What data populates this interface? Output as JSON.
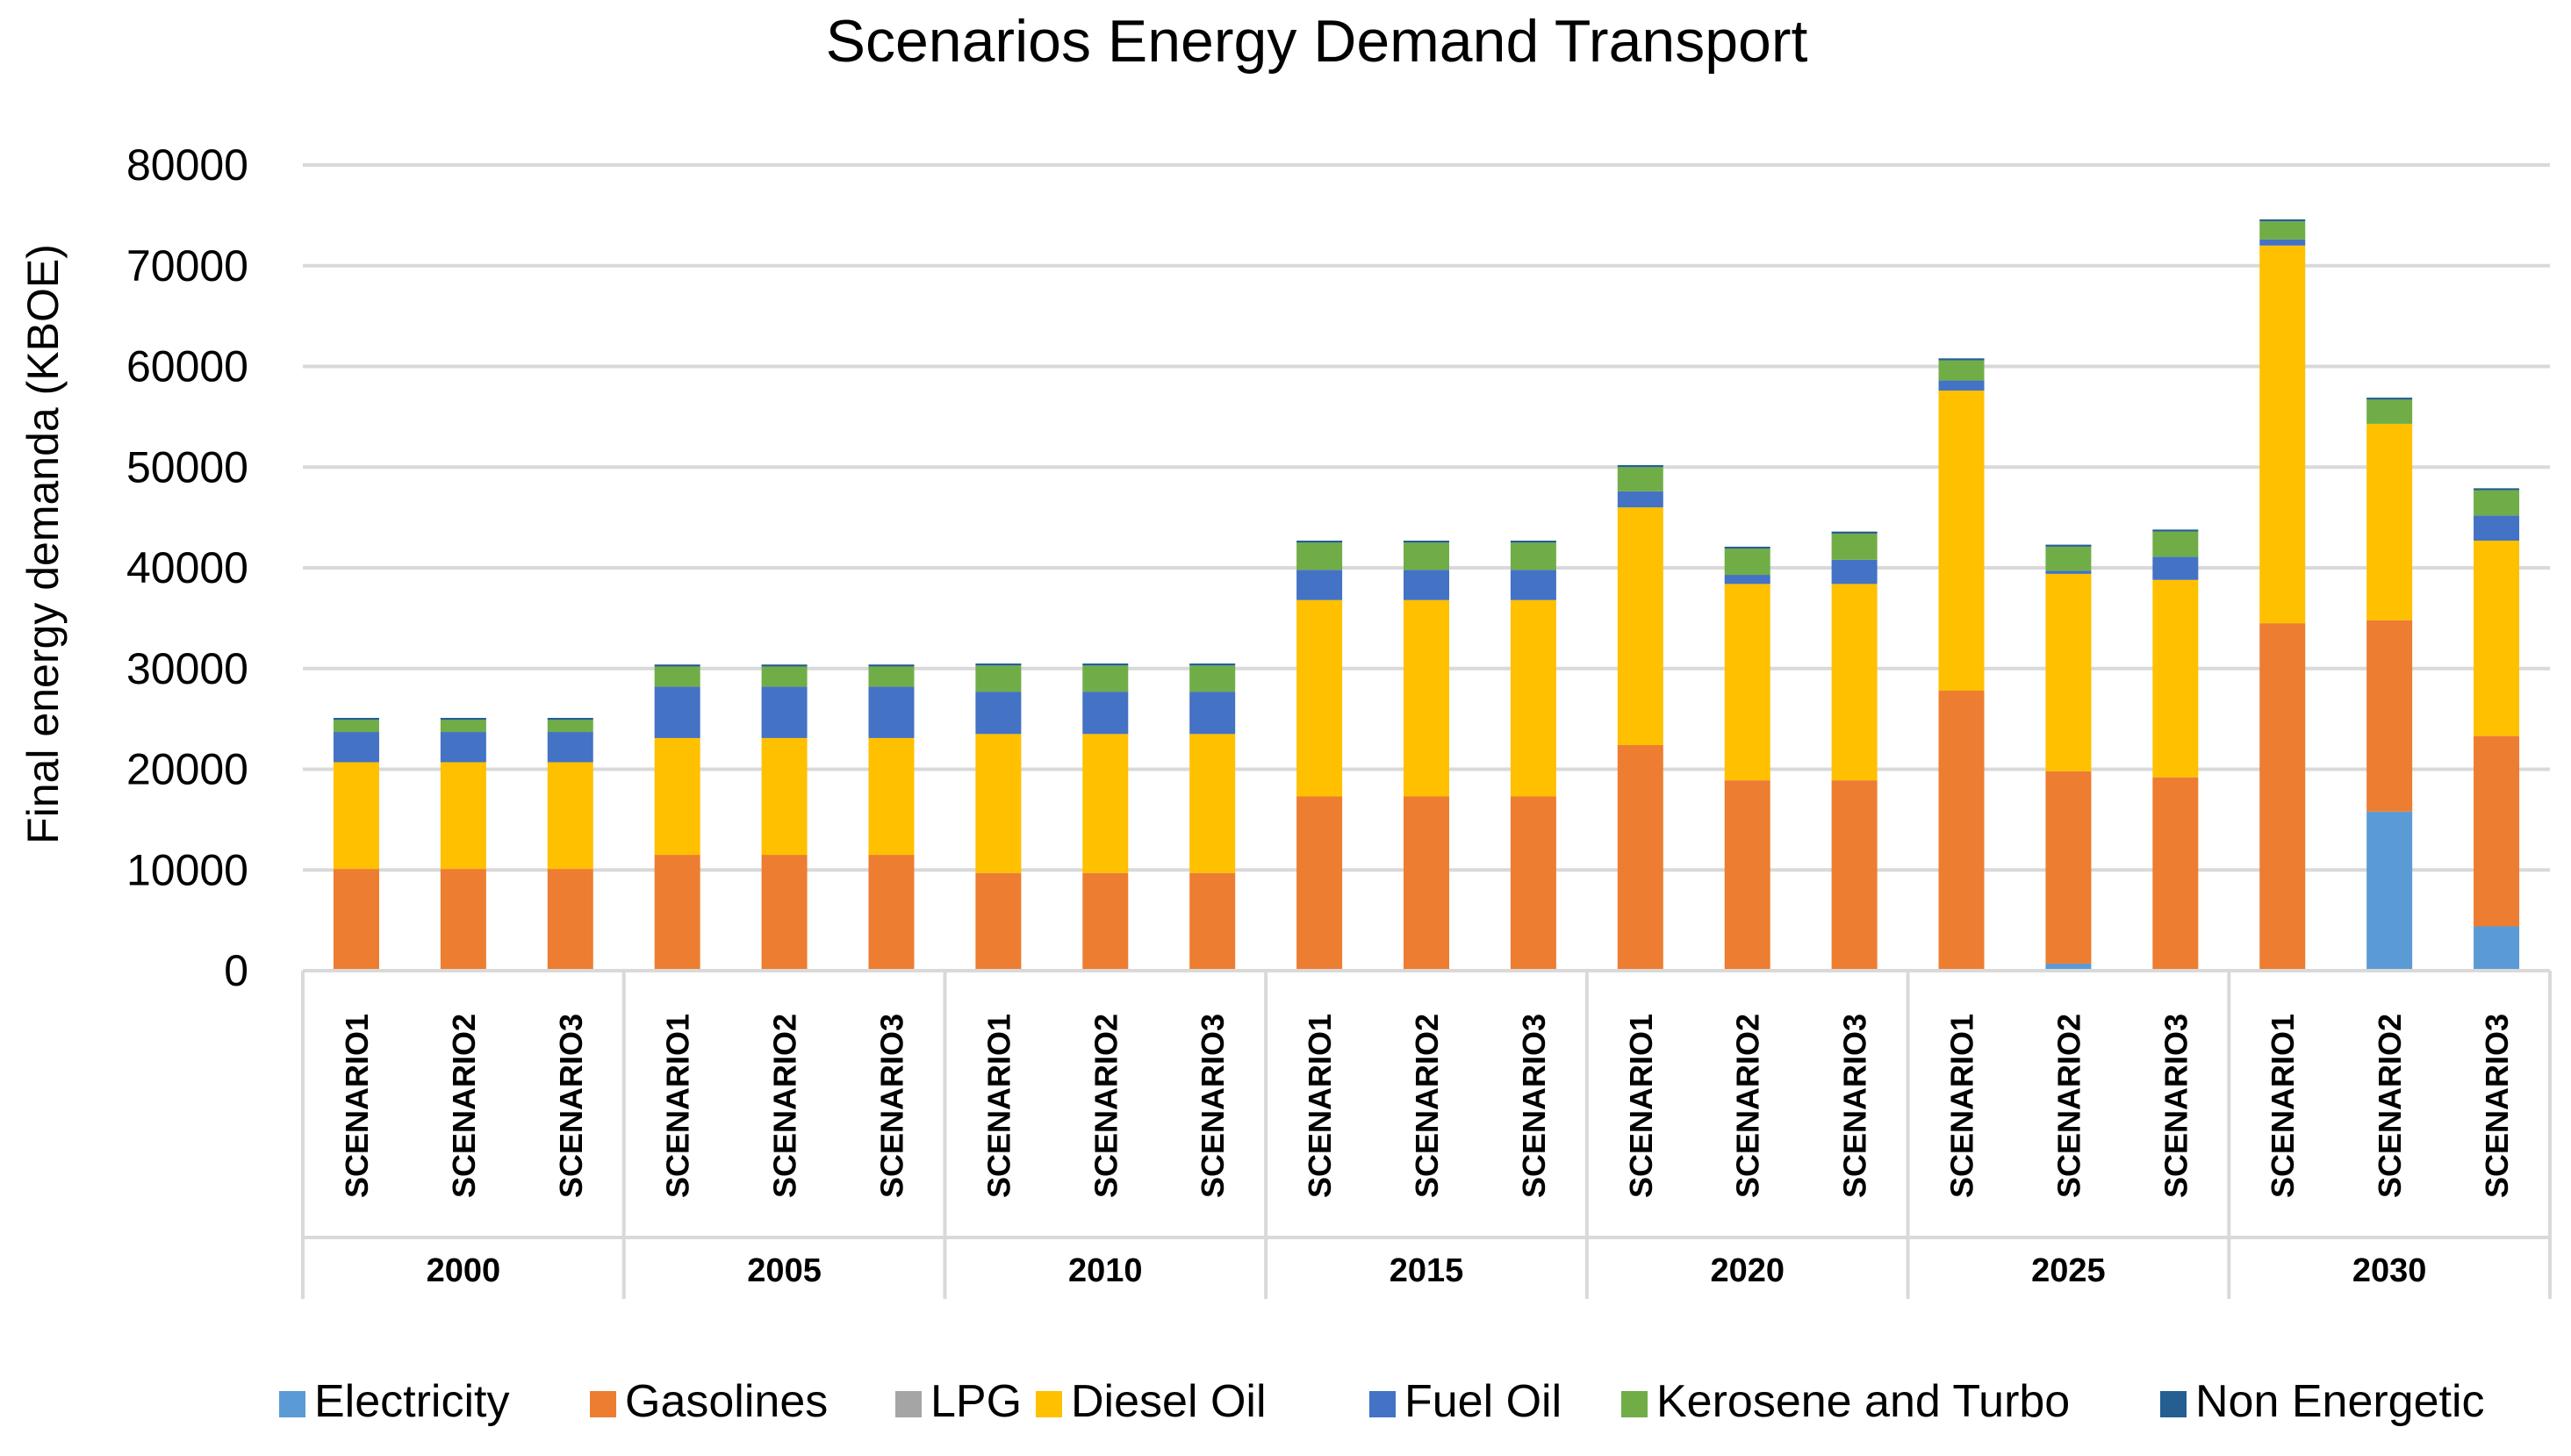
{
  "chart_data": {
    "type": "bar",
    "stacked": true,
    "title": "Scenarios Energy Demand Transport",
    "xlabel": "",
    "ylabel": "Final energy demanda (KBOE)",
    "ylim": [
      0,
      80000
    ],
    "yticks": [
      "0",
      "10000",
      "20000",
      "30000",
      "40000",
      "50000",
      "60000",
      "70000",
      "80000"
    ],
    "grid": true,
    "legend_position": "bottom",
    "groups": [
      {
        "label": "2000",
        "categories": [
          "SCENARIO1",
          "SCENARIO2",
          "SCENARIO3"
        ]
      },
      {
        "label": "2005",
        "categories": [
          "SCENARIO1",
          "SCENARIO2",
          "SCENARIO3"
        ]
      },
      {
        "label": "2010",
        "categories": [
          "SCENARIO1",
          "SCENARIO2",
          "SCENARIO3"
        ]
      },
      {
        "label": "2015",
        "categories": [
          "SCENARIO1",
          "SCENARIO2",
          "SCENARIO3"
        ]
      },
      {
        "label": "2020",
        "categories": [
          "SCENARIO1",
          "SCENARIO2",
          "SCENARIO3"
        ]
      },
      {
        "label": "2025",
        "categories": [
          "SCENARIO1",
          "SCENARIO2",
          "SCENARIO3"
        ]
      },
      {
        "label": "2030",
        "categories": [
          "SCENARIO1",
          "SCENARIO2",
          "SCENARIO3"
        ]
      }
    ],
    "series": [
      {
        "name": "Electricity",
        "color": "#5b9bd5",
        "values": [
          0,
          0,
          0,
          0,
          0,
          0,
          0,
          0,
          0,
          0,
          0,
          0,
          0,
          0,
          0,
          0,
          700,
          0,
          0,
          15800,
          4400
        ]
      },
      {
        "name": "Gasolines",
        "color": "#ed7d31",
        "values": [
          10100,
          10100,
          10100,
          11500,
          11500,
          11500,
          9700,
          9700,
          9700,
          17300,
          17300,
          17300,
          22400,
          18900,
          18900,
          27800,
          19100,
          19200,
          34500,
          19000,
          18900
        ]
      },
      {
        "name": "LPG",
        "color": "#a5a5a5",
        "values": [
          0,
          0,
          0,
          0,
          0,
          0,
          0,
          0,
          0,
          0,
          0,
          0,
          0,
          0,
          0,
          0,
          0,
          0,
          0,
          0,
          0
        ]
      },
      {
        "name": "Diesel Oil",
        "color": "#ffc000",
        "values": [
          10600,
          10600,
          10600,
          11600,
          11600,
          11600,
          13800,
          13800,
          13800,
          19500,
          19500,
          19500,
          23600,
          19500,
          19500,
          29800,
          19600,
          19600,
          37500,
          19500,
          19400
        ]
      },
      {
        "name": "Fuel Oil",
        "color": "#4472c4",
        "values": [
          3000,
          3000,
          3000,
          5100,
          5100,
          5100,
          4200,
          4200,
          4200,
          3000,
          3000,
          3000,
          1600,
          900,
          2400,
          1000,
          300,
          2300,
          600,
          0,
          2500
        ]
      },
      {
        "name": "Kerosene and Turbo",
        "color": "#70ad47",
        "values": [
          1200,
          1200,
          1200,
          2000,
          2000,
          2000,
          2600,
          2600,
          2600,
          2700,
          2700,
          2700,
          2400,
          2600,
          2600,
          2000,
          2400,
          2500,
          1800,
          2400,
          2500
        ]
      },
      {
        "name": "Non Energetic",
        "color": "#255e91",
        "values": [
          200,
          200,
          200,
          200,
          200,
          200,
          200,
          200,
          200,
          200,
          200,
          200,
          200,
          200,
          200,
          200,
          200,
          200,
          200,
          200,
          200
        ]
      }
    ]
  }
}
